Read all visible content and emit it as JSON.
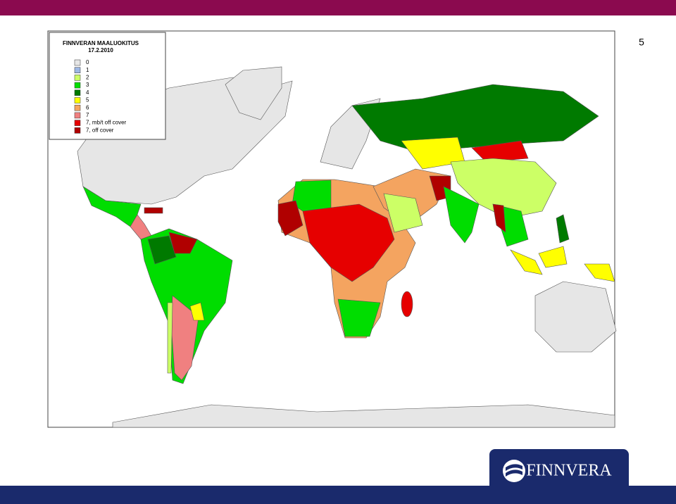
{
  "slide": {
    "page_number": "5"
  },
  "legend": {
    "title": "FINNVERAN MAALUOKITUS",
    "date": "17.2.2010",
    "items": [
      {
        "label": "0",
        "color": "#e6e6e6"
      },
      {
        "label": "1",
        "color": "#9db7e4"
      },
      {
        "label": "2",
        "color": "#ccff66"
      },
      {
        "label": "3",
        "color": "#00dd00"
      },
      {
        "label": "4",
        "color": "#007a00"
      },
      {
        "label": "5",
        "color": "#ffff00"
      },
      {
        "label": "6",
        "color": "#f4a460"
      },
      {
        "label": "7",
        "color": "#f08080"
      },
      {
        "label": "7, mb/t off cover",
        "color": "#e60000"
      },
      {
        "label": "7, off cover",
        "color": "#b00000"
      }
    ]
  },
  "logo": {
    "text": "FINNVERA"
  }
}
